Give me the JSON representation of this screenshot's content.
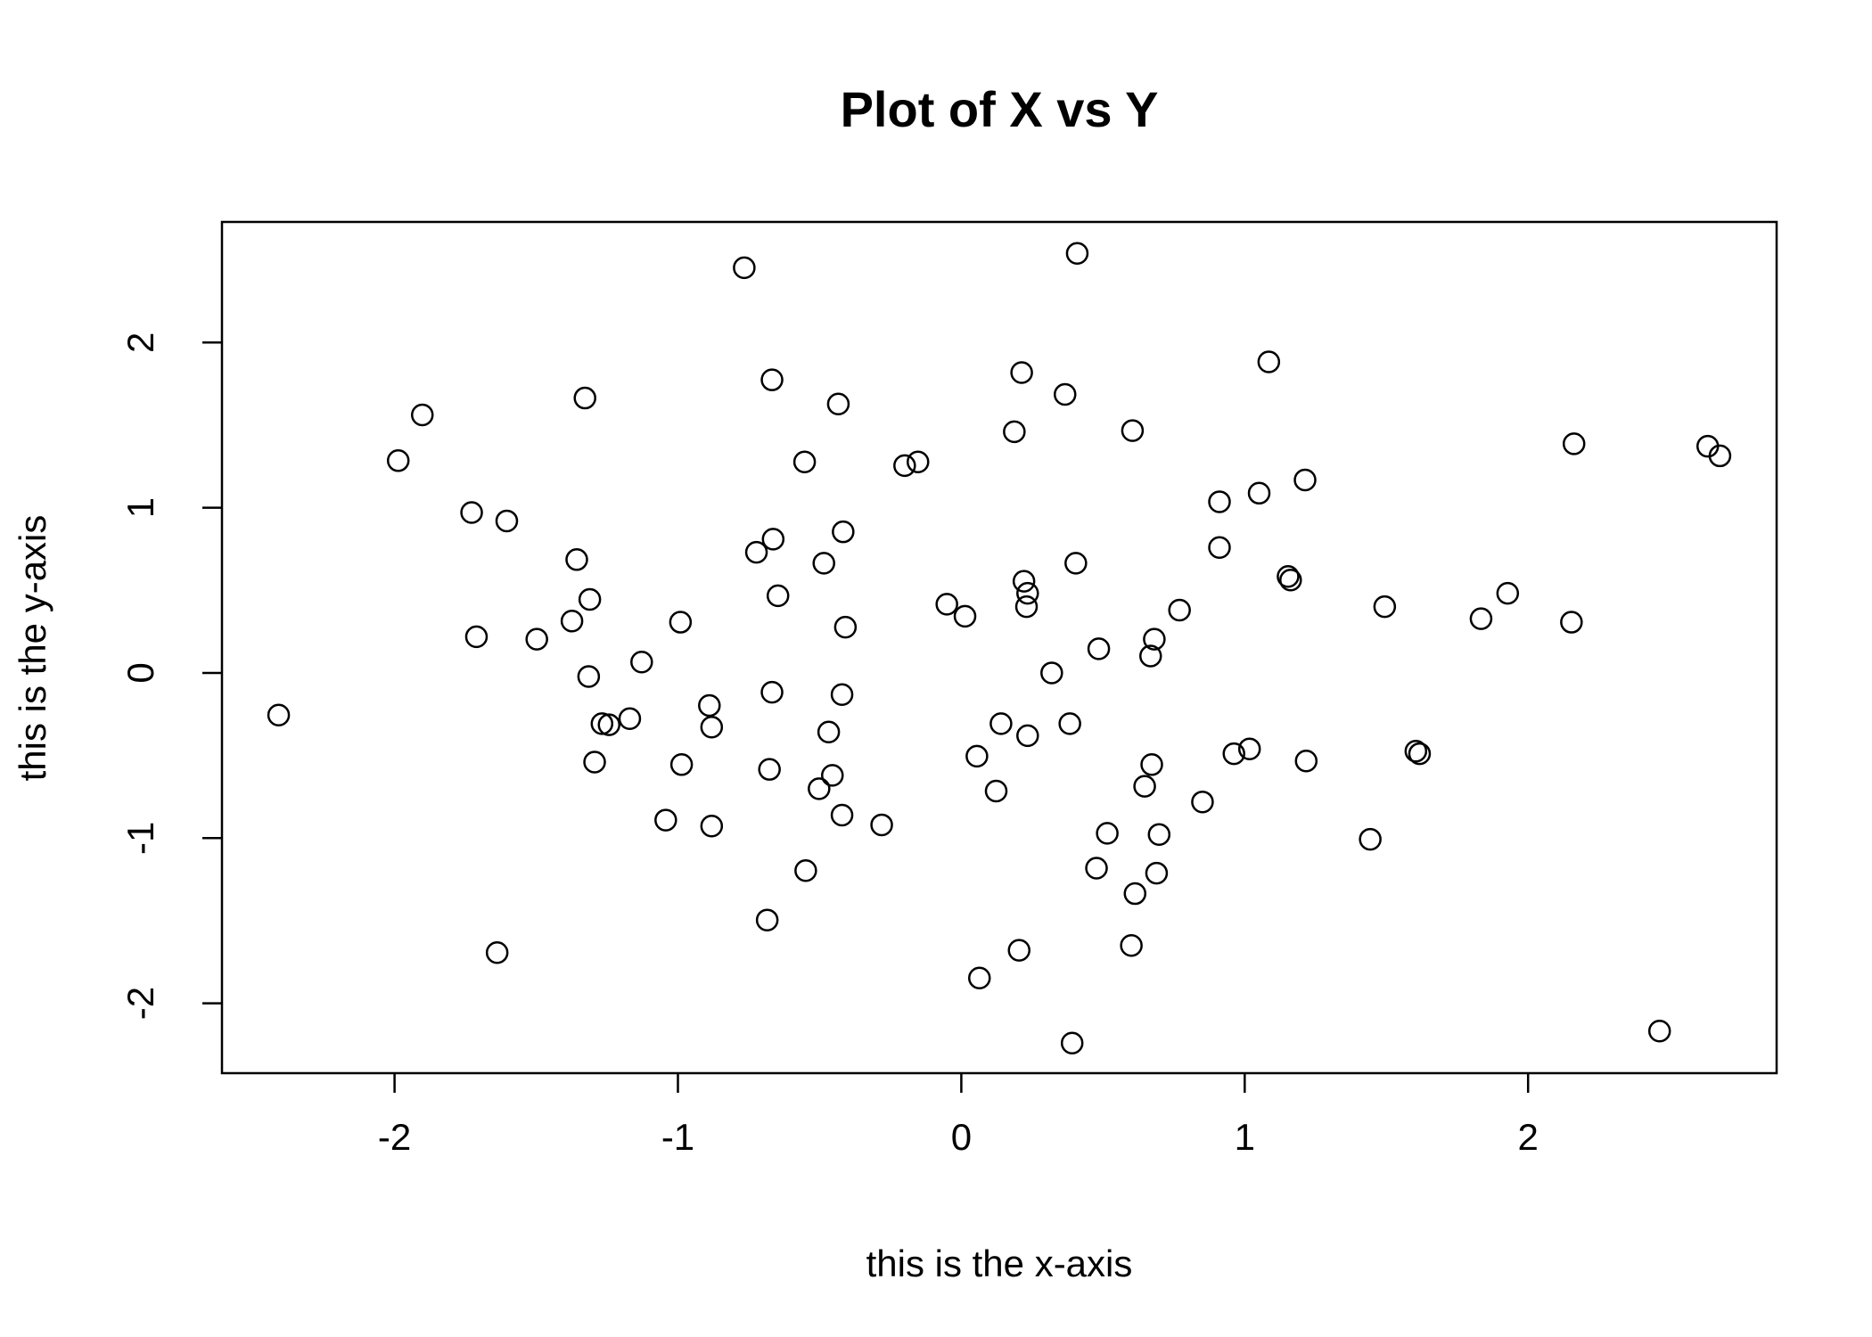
{
  "chart_data": {
    "type": "scatter",
    "title": "Plot of X vs Y",
    "x_label": "this is the x-axis",
    "y_label": "this is the y-axis",
    "xlim": [
      -2.609,
      2.877
    ],
    "ylim": [
      -2.423,
      2.73
    ],
    "xticks": [
      -2,
      -1,
      0,
      1,
      2
    ],
    "yticks": [
      -2,
      -1,
      0,
      1,
      2
    ],
    "color": "#000000",
    "x": [
      -2.409,
      -1.987,
      -1.902,
      -1.728,
      -1.711,
      -1.638,
      -1.604,
      -1.498,
      -1.374,
      -1.357,
      -1.328,
      -1.311,
      -1.315,
      -1.294,
      -1.268,
      -1.243,
      -1.17,
      -1.128,
      -1.043,
      -0.991,
      -0.987,
      -0.889,
      -0.881,
      -0.881,
      -0.766,
      -0.723,
      -0.685,
      -0.677,
      -0.668,
      -0.664,
      -0.668,
      -0.647,
      -0.553,
      -0.549,
      -0.502,
      -0.485,
      -0.468,
      -0.455,
      -0.434,
      -0.421,
      -0.417,
      -0.421,
      -0.409,
      -0.281,
      -0.2,
      -0.153,
      -0.051,
      0.013,
      0.055,
      0.064,
      0.123,
      0.14,
      0.187,
      0.204,
      0.213,
      0.221,
      0.234,
      0.23,
      0.234,
      0.319,
      0.366,
      0.383,
      0.391,
      0.409,
      0.404,
      0.485,
      0.477,
      0.515,
      0.604,
      0.6,
      0.613,
      0.647,
      0.668,
      0.672,
      0.681,
      0.689,
      0.698,
      0.77,
      0.851,
      0.911,
      0.911,
      0.962,
      1.017,
      1.051,
      1.085,
      1.153,
      1.162,
      1.213,
      1.217,
      1.443,
      1.494,
      1.604,
      1.617,
      1.834,
      1.928,
      2.153,
      2.162,
      2.464,
      2.634,
      2.677
    ],
    "y": [
      -0.255,
      1.285,
      1.562,
      0.971,
      0.219,
      -1.693,
      0.92,
      0.204,
      0.314,
      0.686,
      1.664,
      0.445,
      -0.022,
      -0.54,
      -0.307,
      -0.314,
      -0.277,
      0.066,
      -0.891,
      0.307,
      -0.555,
      -0.197,
      -0.328,
      -0.927,
      2.453,
      0.73,
      -1.496,
      -0.584,
      1.774,
      0.81,
      -0.117,
      0.467,
      1.277,
      -1.197,
      -0.701,
      0.664,
      -0.358,
      -0.62,
      1.628,
      -0.131,
      0.854,
      -0.861,
      0.277,
      -0.92,
      1.255,
      1.277,
      0.416,
      0.343,
      -0.504,
      -1.847,
      -0.715,
      -0.307,
      1.46,
      -1.679,
      1.818,
      0.555,
      0.482,
      0.401,
      -0.38,
      0.0,
      1.686,
      -0.307,
      -2.241,
      2.54,
      0.664,
      0.146,
      -1.182,
      -0.971,
      1.467,
      -1.65,
      -1.336,
      -0.686,
      0.102,
      -0.555,
      0.204,
      -1.212,
      -0.978,
      0.38,
      -0.781,
      1.036,
      0.759,
      -0.489,
      -0.46,
      1.088,
      1.883,
      0.584,
      0.562,
      1.168,
      -0.533,
      -1.007,
      0.401,
      -0.474,
      -0.489,
      0.328,
      0.482,
      0.307,
      1.387,
      -2.168,
      1.372,
      1.314
    ]
  }
}
